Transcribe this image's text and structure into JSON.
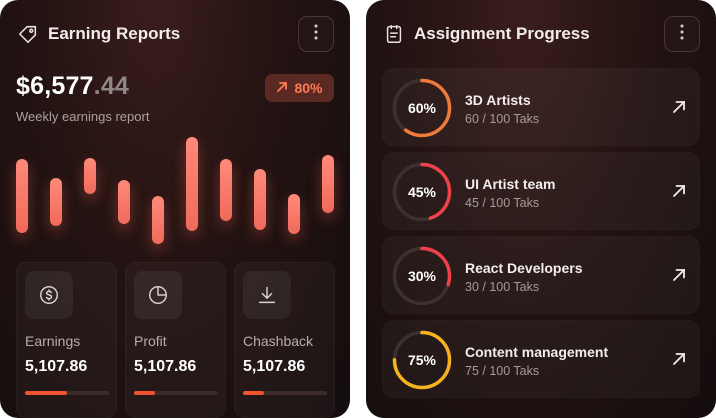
{
  "earning": {
    "title": "Earning Reports",
    "icon": "tag-icon",
    "amount_main": "$6,577",
    "amount_cents": ".44",
    "subtitle": "Weekly earnings report",
    "badge": "80%",
    "badge_icon": "arrow-up-right-icon",
    "bar_levels": [
      0.62,
      0.4,
      0.3,
      0.36,
      0.4,
      0.78,
      0.52,
      0.51,
      0.34,
      0.48
    ],
    "tiles": [
      {
        "label": "Earnings",
        "value": "5,107.86",
        "progress": 0.5,
        "icon": "dollar-coin-icon"
      },
      {
        "label": "Profit",
        "value": "5,107.86",
        "progress": 0.25,
        "icon": "pie-chart-icon"
      },
      {
        "label": "Chashback",
        "value": "5,107.86",
        "progress": 0.25,
        "icon": "download-icon"
      }
    ]
  },
  "assignment": {
    "title": "Assignment Progress",
    "icon": "clipboard-icon",
    "items": [
      {
        "percent_label": "60%",
        "progress": 0.6,
        "name": "3D Artists",
        "detail": "60 / 100 Taks",
        "color": "#f07a3a"
      },
      {
        "percent_label": "45%",
        "progress": 0.45,
        "name": "UI Artist team",
        "detail": "45 / 100 Taks",
        "color": "#f0404a"
      },
      {
        "percent_label": "30%",
        "progress": 0.3,
        "name": "React Developers",
        "detail": "30 / 100 Taks",
        "color": "#f0404a"
      },
      {
        "percent_label": "75%",
        "progress": 0.75,
        "name": "Content management",
        "detail": "75 / 100 Taks",
        "color": "#f5b21f"
      }
    ]
  },
  "colors": {
    "accent": "#f0532f",
    "bar": "#f06a5b",
    "badge_bg": "#5a2a22",
    "badge_text": "#ff7a55",
    "ring_track": "#3d3130"
  }
}
